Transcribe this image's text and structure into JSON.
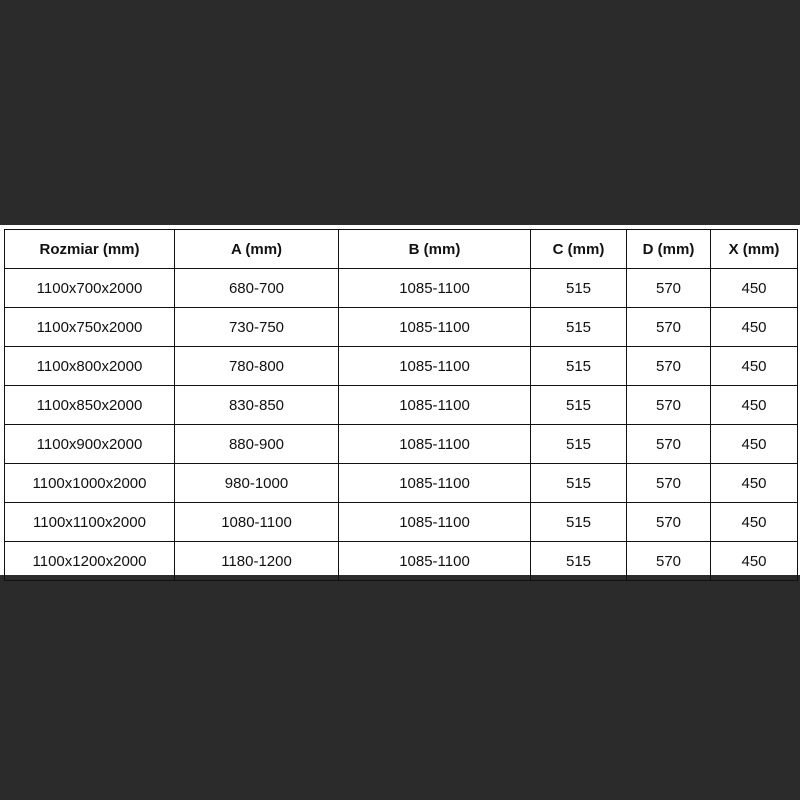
{
  "table": {
    "headers": [
      "Rozmiar (mm)",
      "A (mm)",
      "B (mm)",
      "C (mm)",
      "D (mm)",
      "X (mm)"
    ],
    "rows": [
      [
        "1100x700x2000",
        "680-700",
        "1085-1100",
        "515",
        "570",
        "450"
      ],
      [
        "1100x750x2000",
        "730-750",
        "1085-1100",
        "515",
        "570",
        "450"
      ],
      [
        "1100x800x2000",
        "780-800",
        "1085-1100",
        "515",
        "570",
        "450"
      ],
      [
        "1100x850x2000",
        "830-850",
        "1085-1100",
        "515",
        "570",
        "450"
      ],
      [
        "1100x900x2000",
        "880-900",
        "1085-1100",
        "515",
        "570",
        "450"
      ],
      [
        "1100x1000x2000",
        "980-1000",
        "1085-1100",
        "515",
        "570",
        "450"
      ],
      [
        "1100x1100x2000",
        "1080-1100",
        "1085-1100",
        "515",
        "570",
        "450"
      ],
      [
        "1100x1200x2000",
        "1180-1200",
        "1085-1100",
        "515",
        "570",
        "450"
      ]
    ]
  },
  "colors": {
    "background": "#2b2b2b",
    "table_background": "#ffffff",
    "border": "#111111"
  }
}
